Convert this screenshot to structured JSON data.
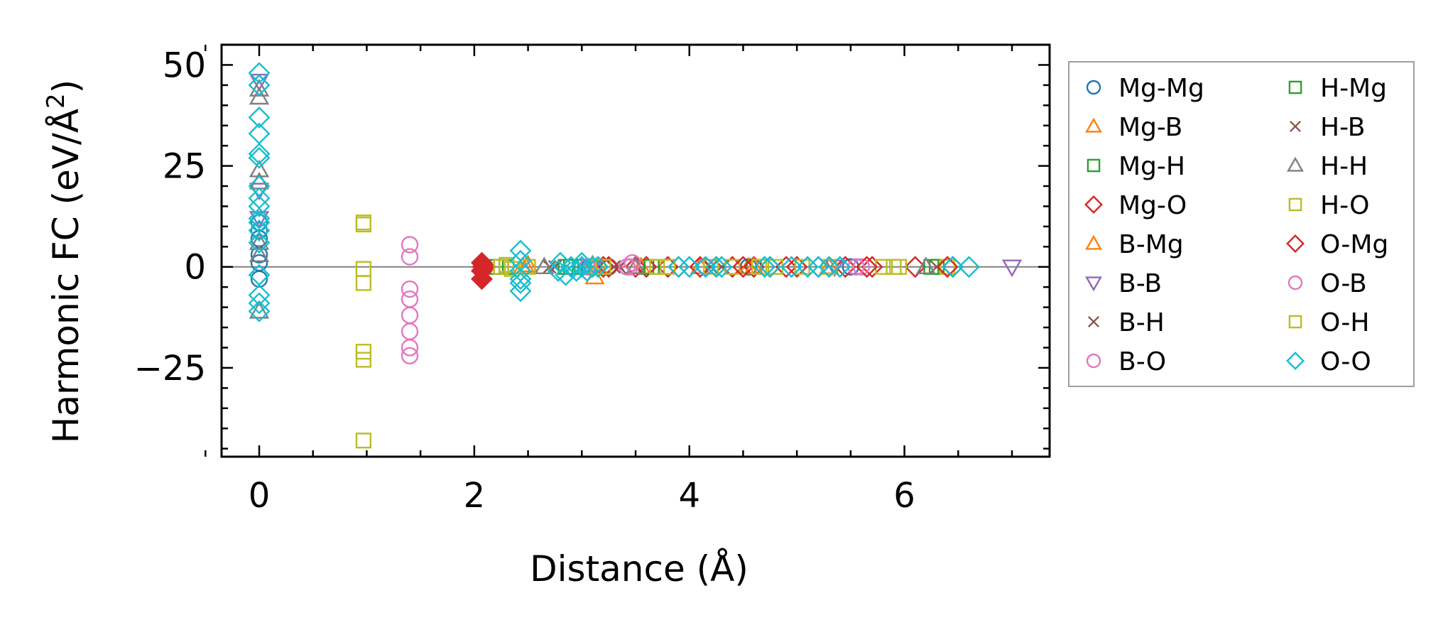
{
  "chart_data": {
    "type": "scatter",
    "xlabel": "Distance (Å)",
    "ylabel_main": "Harmonic FC (eV/Å",
    "ylabel_sup": "2",
    "ylabel_close": ")",
    "xlim": [
      -0.35,
      7.35
    ],
    "ylim": [
      -47,
      55
    ],
    "xticks": [
      0,
      2,
      4,
      6
    ],
    "xtick_labels": [
      "0",
      "2",
      "4",
      "6"
    ],
    "yticks": [
      50,
      25,
      0,
      -25
    ],
    "ytick_labels": [
      "50",
      "25",
      "0",
      "−25"
    ],
    "zero_line": 0,
    "grid": false,
    "legend_position": "right, outside the plot area",
    "series": [
      {
        "name": "Mg-Mg",
        "marker": "circle",
        "color": "#1f77b4",
        "points": [
          [
            0,
            11
          ],
          [
            0,
            9
          ],
          [
            0,
            7
          ],
          [
            0,
            3
          ],
          [
            0,
            1
          ],
          [
            0,
            -3
          ],
          [
            3.07,
            0
          ],
          [
            3.25,
            0
          ],
          [
            4.55,
            0
          ],
          [
            5.5,
            0
          ]
        ]
      },
      {
        "name": "Mg-B",
        "marker": "triangle-up",
        "color": "#ff7f0e",
        "points": [
          [
            2.45,
            0
          ],
          [
            2.5,
            0.5
          ],
          [
            3.1,
            0.5
          ],
          [
            3.12,
            -2.5
          ],
          [
            3.5,
            0
          ],
          [
            4.1,
            0
          ],
          [
            4.55,
            0
          ],
          [
            5.3,
            0
          ]
        ]
      },
      {
        "name": "Mg-H",
        "marker": "square",
        "color": "#2ca02c",
        "points": [
          [
            2.2,
            0
          ],
          [
            2.3,
            0
          ],
          [
            2.85,
            0
          ],
          [
            3.0,
            0
          ],
          [
            3.6,
            0
          ],
          [
            4.6,
            0
          ],
          [
            6.3,
            0
          ]
        ]
      },
      {
        "name": "Mg-O",
        "marker": "diamond",
        "color": "#d62728",
        "points": [
          [
            2.07,
            1
          ],
          [
            2.07,
            -1
          ],
          [
            2.07,
            -3
          ],
          [
            2.1,
            0
          ],
          [
            3.2,
            0
          ],
          [
            3.5,
            0
          ],
          [
            3.6,
            0
          ],
          [
            3.8,
            0
          ],
          [
            4.1,
            0
          ],
          [
            4.25,
            0
          ],
          [
            4.4,
            0
          ],
          [
            4.6,
            0
          ],
          [
            4.75,
            0
          ],
          [
            4.9,
            0
          ],
          [
            5.2,
            0
          ],
          [
            5.45,
            0
          ],
          [
            5.7,
            0
          ],
          [
            6.1,
            0
          ],
          [
            6.45,
            0
          ]
        ]
      },
      {
        "name": "B-Mg",
        "marker": "triangle-up",
        "color": "#ff7f0e",
        "points": [
          [
            2.48,
            0
          ],
          [
            3.15,
            0
          ],
          [
            3.55,
            0
          ],
          [
            4.6,
            0
          ]
        ]
      },
      {
        "name": "B-B",
        "marker": "triangle-down",
        "color": "#9467bd",
        "points": [
          [
            0,
            46
          ],
          [
            0,
            19
          ],
          [
            0,
            12
          ],
          [
            3.1,
            0
          ],
          [
            5.35,
            0
          ],
          [
            7.0,
            0
          ]
        ]
      },
      {
        "name": "B-H",
        "marker": "x",
        "color": "#8c564b",
        "points": [
          [
            2.75,
            0
          ],
          [
            3.3,
            0
          ],
          [
            4.2,
            0
          ],
          [
            6.3,
            0
          ]
        ]
      },
      {
        "name": "B-O",
        "marker": "circle",
        "color": "#e377c2",
        "points": [
          [
            1.4,
            5.5
          ],
          [
            1.4,
            2.5
          ],
          [
            1.4,
            -5.5
          ],
          [
            1.4,
            -8
          ],
          [
            1.4,
            -12
          ],
          [
            1.4,
            -16
          ],
          [
            1.4,
            -20
          ],
          [
            1.4,
            -22
          ],
          [
            3.05,
            0
          ],
          [
            3.45,
            0
          ],
          [
            5.6,
            0
          ]
        ]
      },
      {
        "name": "H-Mg",
        "marker": "square",
        "color": "#2ca02c",
        "points": [
          [
            2.25,
            0
          ],
          [
            2.9,
            0
          ],
          [
            3.65,
            0
          ],
          [
            6.25,
            0
          ]
        ]
      },
      {
        "name": "H-B",
        "marker": "x",
        "color": "#8c564b",
        "points": [
          [
            2.7,
            0
          ],
          [
            3.35,
            0
          ],
          [
            4.3,
            0
          ]
        ]
      },
      {
        "name": "H-H",
        "marker": "triangle-up",
        "color": "#7f7f7f",
        "points": [
          [
            0,
            44
          ],
          [
            0,
            42
          ],
          [
            0,
            24
          ],
          [
            0,
            21
          ],
          [
            0,
            6
          ],
          [
            0,
            3
          ],
          [
            0,
            -11
          ],
          [
            2.65,
            0
          ],
          [
            3.5,
            0
          ],
          [
            6.2,
            0
          ]
        ]
      },
      {
        "name": "H-O",
        "marker": "square",
        "color": "#bcbd22",
        "points": [
          [
            0.97,
            11
          ],
          [
            0.97,
            10.5
          ],
          [
            0.97,
            -0.5
          ],
          [
            0.97,
            -4
          ],
          [
            0.97,
            -21
          ],
          [
            0.97,
            -23
          ],
          [
            0.97,
            -43
          ],
          [
            2.25,
            0
          ],
          [
            2.5,
            0
          ],
          [
            3.15,
            0
          ],
          [
            3.7,
            0
          ],
          [
            4.2,
            0
          ],
          [
            4.4,
            0
          ],
          [
            4.8,
            0
          ],
          [
            5.3,
            0
          ],
          [
            5.8,
            0
          ],
          [
            5.95,
            0
          ],
          [
            6.4,
            0
          ]
        ]
      },
      {
        "name": "O-Mg",
        "marker": "diamond",
        "color": "#d62728",
        "points": [
          [
            2.08,
            0
          ],
          [
            3.25,
            0
          ],
          [
            3.9,
            0
          ],
          [
            4.5,
            0
          ],
          [
            5.0,
            0
          ],
          [
            5.65,
            0
          ],
          [
            6.4,
            0
          ]
        ]
      },
      {
        "name": "O-B",
        "marker": "circle",
        "color": "#e377c2",
        "points": [
          [
            3.42,
            0
          ],
          [
            3.47,
            1
          ],
          [
            4.15,
            0
          ],
          [
            5.55,
            0
          ]
        ]
      },
      {
        "name": "O-H",
        "marker": "square",
        "color": "#bcbd22",
        "points": [
          [
            2.3,
            0.5
          ],
          [
            2.35,
            -0.5
          ],
          [
            3.2,
            0
          ],
          [
            3.8,
            0
          ],
          [
            4.65,
            0
          ],
          [
            5.05,
            0
          ],
          [
            5.9,
            0
          ]
        ]
      },
      {
        "name": "O-O",
        "marker": "diamond",
        "color": "#17becf",
        "points": [
          [
            0,
            48
          ],
          [
            0,
            45
          ],
          [
            0,
            37
          ],
          [
            0,
            33
          ],
          [
            0,
            28
          ],
          [
            0,
            27
          ],
          [
            0,
            20
          ],
          [
            0,
            17
          ],
          [
            0,
            15
          ],
          [
            0,
            12
          ],
          [
            0,
            11
          ],
          [
            0,
            9
          ],
          [
            0,
            6
          ],
          [
            0,
            -2
          ],
          [
            0,
            -7
          ],
          [
            0,
            -9
          ],
          [
            0,
            -11
          ],
          [
            2.43,
            4
          ],
          [
            2.43,
            1.5
          ],
          [
            2.43,
            -1
          ],
          [
            2.43,
            -3
          ],
          [
            2.43,
            -4
          ],
          [
            2.43,
            -6
          ],
          [
            2.78,
            -1
          ],
          [
            2.8,
            1
          ],
          [
            2.85,
            -2
          ],
          [
            2.9,
            0
          ],
          [
            2.95,
            -1
          ],
          [
            3.0,
            1
          ],
          [
            3.0,
            0
          ],
          [
            3.05,
            -1
          ],
          [
            3.1,
            0
          ],
          [
            3.15,
            0
          ],
          [
            3.9,
            0
          ],
          [
            4.0,
            0
          ],
          [
            4.15,
            0
          ],
          [
            4.25,
            0
          ],
          [
            4.3,
            0
          ],
          [
            4.7,
            0
          ],
          [
            4.75,
            0
          ],
          [
            4.95,
            0
          ],
          [
            5.1,
            0
          ],
          [
            5.2,
            0
          ],
          [
            5.3,
            0
          ],
          [
            5.4,
            0
          ],
          [
            6.45,
            0
          ],
          [
            6.6,
            0
          ]
        ]
      }
    ]
  }
}
